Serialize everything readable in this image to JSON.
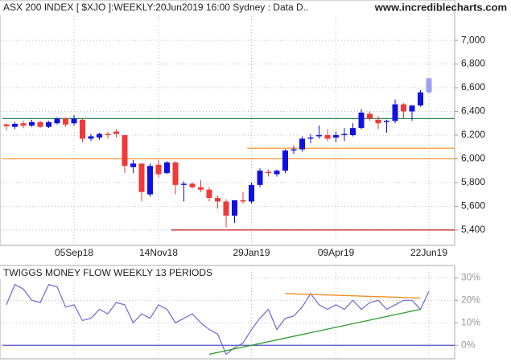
{
  "chart_data": [
    {
      "type": "candlestick",
      "title": "ASX 200 INDEX [ $XJO ]:WEEKLY:20Jun2019 16:00 Sydney : Data D..",
      "source": "www.incrediblecharts.com",
      "categories": [
        null,
        null,
        null,
        null,
        null,
        null,
        null,
        null,
        "05Sep18",
        null,
        null,
        null,
        null,
        null,
        null,
        null,
        null,
        null,
        "14Nov18",
        null,
        null,
        null,
        null,
        null,
        null,
        null,
        null,
        null,
        null,
        "29Jan19",
        null,
        null,
        null,
        null,
        null,
        null,
        null,
        null,
        null,
        "09Apr19",
        null,
        null,
        null,
        null,
        null,
        null,
        null,
        null,
        null,
        null,
        "22Jun19"
      ],
      "open": [
        6290,
        6270,
        6300,
        6280,
        6310,
        6270,
        6300,
        6340,
        6300,
        6330,
        6170,
        6180,
        6210,
        6230,
        6200,
        5930,
        5960,
        5700,
        5950,
        5880,
        5970,
        5780,
        5790,
        5760,
        5740,
        5670,
        5640,
        5520,
        5650,
        5640,
        5780,
        5890,
        5870,
        5900,
        6070,
        6080,
        6170,
        6190,
        6200,
        6180,
        6200,
        6200,
        6260,
        6380,
        6330,
        6310,
        6320,
        6460,
        6400,
        6450,
        6560
      ],
      "high": [
        6300,
        6310,
        6320,
        6330,
        6320,
        6320,
        6350,
        6350,
        6370,
        6340,
        6210,
        6220,
        6230,
        6250,
        6200,
        5990,
        5960,
        5960,
        5990,
        5980,
        5980,
        5810,
        5800,
        5820,
        5760,
        5690,
        5660,
        5640,
        5720,
        5800,
        5920,
        5910,
        5910,
        6080,
        6110,
        6190,
        6210,
        6280,
        6250,
        6230,
        6260,
        6300,
        6420,
        6400,
        6360,
        6330,
        6500,
        6470,
        6450,
        6580,
        6680
      ],
      "low": [
        6240,
        6250,
        6260,
        6270,
        6260,
        6260,
        6290,
        6270,
        6280,
        6140,
        6150,
        6160,
        6170,
        6180,
        5880,
        5880,
        5640,
        5680,
        5840,
        5870,
        5700,
        5640,
        5750,
        5720,
        5640,
        5580,
        5420,
        5460,
        5620,
        5620,
        5760,
        5850,
        5850,
        5880,
        6040,
        6060,
        6130,
        6170,
        6150,
        6140,
        6150,
        6190,
        6250,
        6320,
        6250,
        6220,
        6300,
        6340,
        6320,
        6440,
        6550
      ],
      "close": [
        6275,
        6295,
        6280,
        6310,
        6270,
        6310,
        6340,
        6290,
        6340,
        6170,
        6190,
        6210,
        6200,
        6210,
        5940,
        5960,
        5720,
        5940,
        5870,
        5970,
        5780,
        5790,
        5760,
        5740,
        5670,
        5640,
        5520,
        5650,
        5640,
        5780,
        5900,
        5880,
        5900,
        6070,
        6080,
        6170,
        6180,
        6200,
        6170,
        6200,
        6210,
        6260,
        6390,
        6340,
        6300,
        6320,
        6460,
        6400,
        6450,
        6560,
        6680
      ],
      "up_color": "#1010e0",
      "down_color": "#f03a3a",
      "current_color": "#a0a0f0",
      "ylim": [
        5270,
        7340
      ],
      "yticks": [
        {
          "value": 5400,
          "label": "5,400"
        },
        {
          "value": 5600,
          "label": "5,600"
        },
        {
          "value": 5800,
          "label": "5,800"
        },
        {
          "value": 6000,
          "label": "6,000"
        },
        {
          "value": 6200,
          "label": "6,200"
        },
        {
          "value": 6400,
          "label": "6,400"
        },
        {
          "value": 6600,
          "label": "6,600"
        },
        {
          "value": 6800,
          "label": "6,800"
        },
        {
          "value": 7000,
          "label": "7,000"
        }
      ],
      "grid": true,
      "hlines": [
        {
          "value": 6340,
          "color": "#2e8b57",
          "start": 0
        },
        {
          "value": 6000,
          "color": "#f08c1e",
          "start": 0
        },
        {
          "value": 6090,
          "color": "#f08c1e",
          "start": 29
        },
        {
          "value": 5400,
          "color": "#c81e1e",
          "start": 20
        }
      ]
    },
    {
      "type": "line",
      "title": "TWIGGS MONEY FLOW WEEKLY 13 PERIODS",
      "values": [
        18,
        27,
        25,
        20,
        19,
        27,
        26,
        17,
        18,
        11,
        12,
        16,
        14,
        19,
        18,
        10,
        14,
        12,
        18,
        16,
        10,
        12,
        14,
        10,
        7,
        5,
        -4,
        -1,
        1,
        7,
        12,
        16,
        7,
        12,
        13,
        17,
        23,
        18,
        16,
        18,
        16,
        20,
        16,
        19,
        20,
        16,
        18,
        20,
        20,
        16,
        24
      ],
      "color": "#6a6ad0",
      "ylim": [
        -6,
        35.5
      ],
      "yticks": [
        {
          "value": 0,
          "label": "0%"
        },
        {
          "value": 10,
          "label": "10%"
        },
        {
          "value": 20,
          "label": "20%"
        },
        {
          "value": 30,
          "label": "30%"
        }
      ],
      "grid": true,
      "hlines": [
        {
          "value": 0,
          "color": "#5050c8",
          "start": 0
        }
      ],
      "trendlines": [
        {
          "color": "#f08c1e",
          "points": [
            [
              33,
              23
            ],
            [
              49,
              21
            ]
          ]
        },
        {
          "color": "#2a9a2a",
          "points": [
            [
              24,
              -4
            ],
            [
              49,
              16
            ]
          ]
        }
      ]
    }
  ]
}
